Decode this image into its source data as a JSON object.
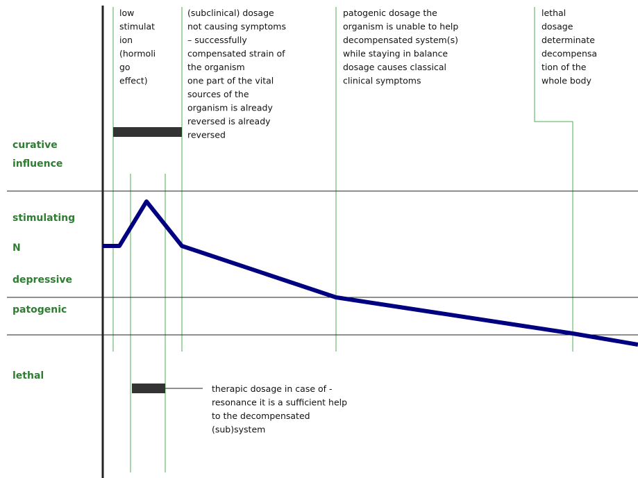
{
  "levels": {
    "curative": [
      "curative",
      "influence"
    ],
    "stimulating": "stimulating",
    "normal": "N",
    "depressive": "depressive",
    "patogenic": "patogenic",
    "lethal": "lethal"
  },
  "columns": [
    [
      "low",
      "stimulat",
      "ion",
      "(hormoli",
      "go",
      "effect)"
    ],
    [
      "(subclinical) dosage",
      "not causing symptoms",
      "– successfully",
      "compensated strain of",
      "the organism",
      "one part of the vital",
      "sources of the",
      "organism is already",
      "reversed is already",
      "reversed"
    ],
    [
      "patogenic dosage the",
      "organism is unable to help",
      "decompensated system(s)",
      "while staying in balance",
      "dosage causes classical",
      "clinical symptoms"
    ],
    [
      "lethal",
      "dosage",
      "determinate",
      "decompensa",
      "tion of the",
      "whole body"
    ]
  ],
  "note": [
    "therapic dosage in case of -",
    "resonance it is a sufficient help",
    "to the decompensated",
    "(sub)system"
  ]
}
